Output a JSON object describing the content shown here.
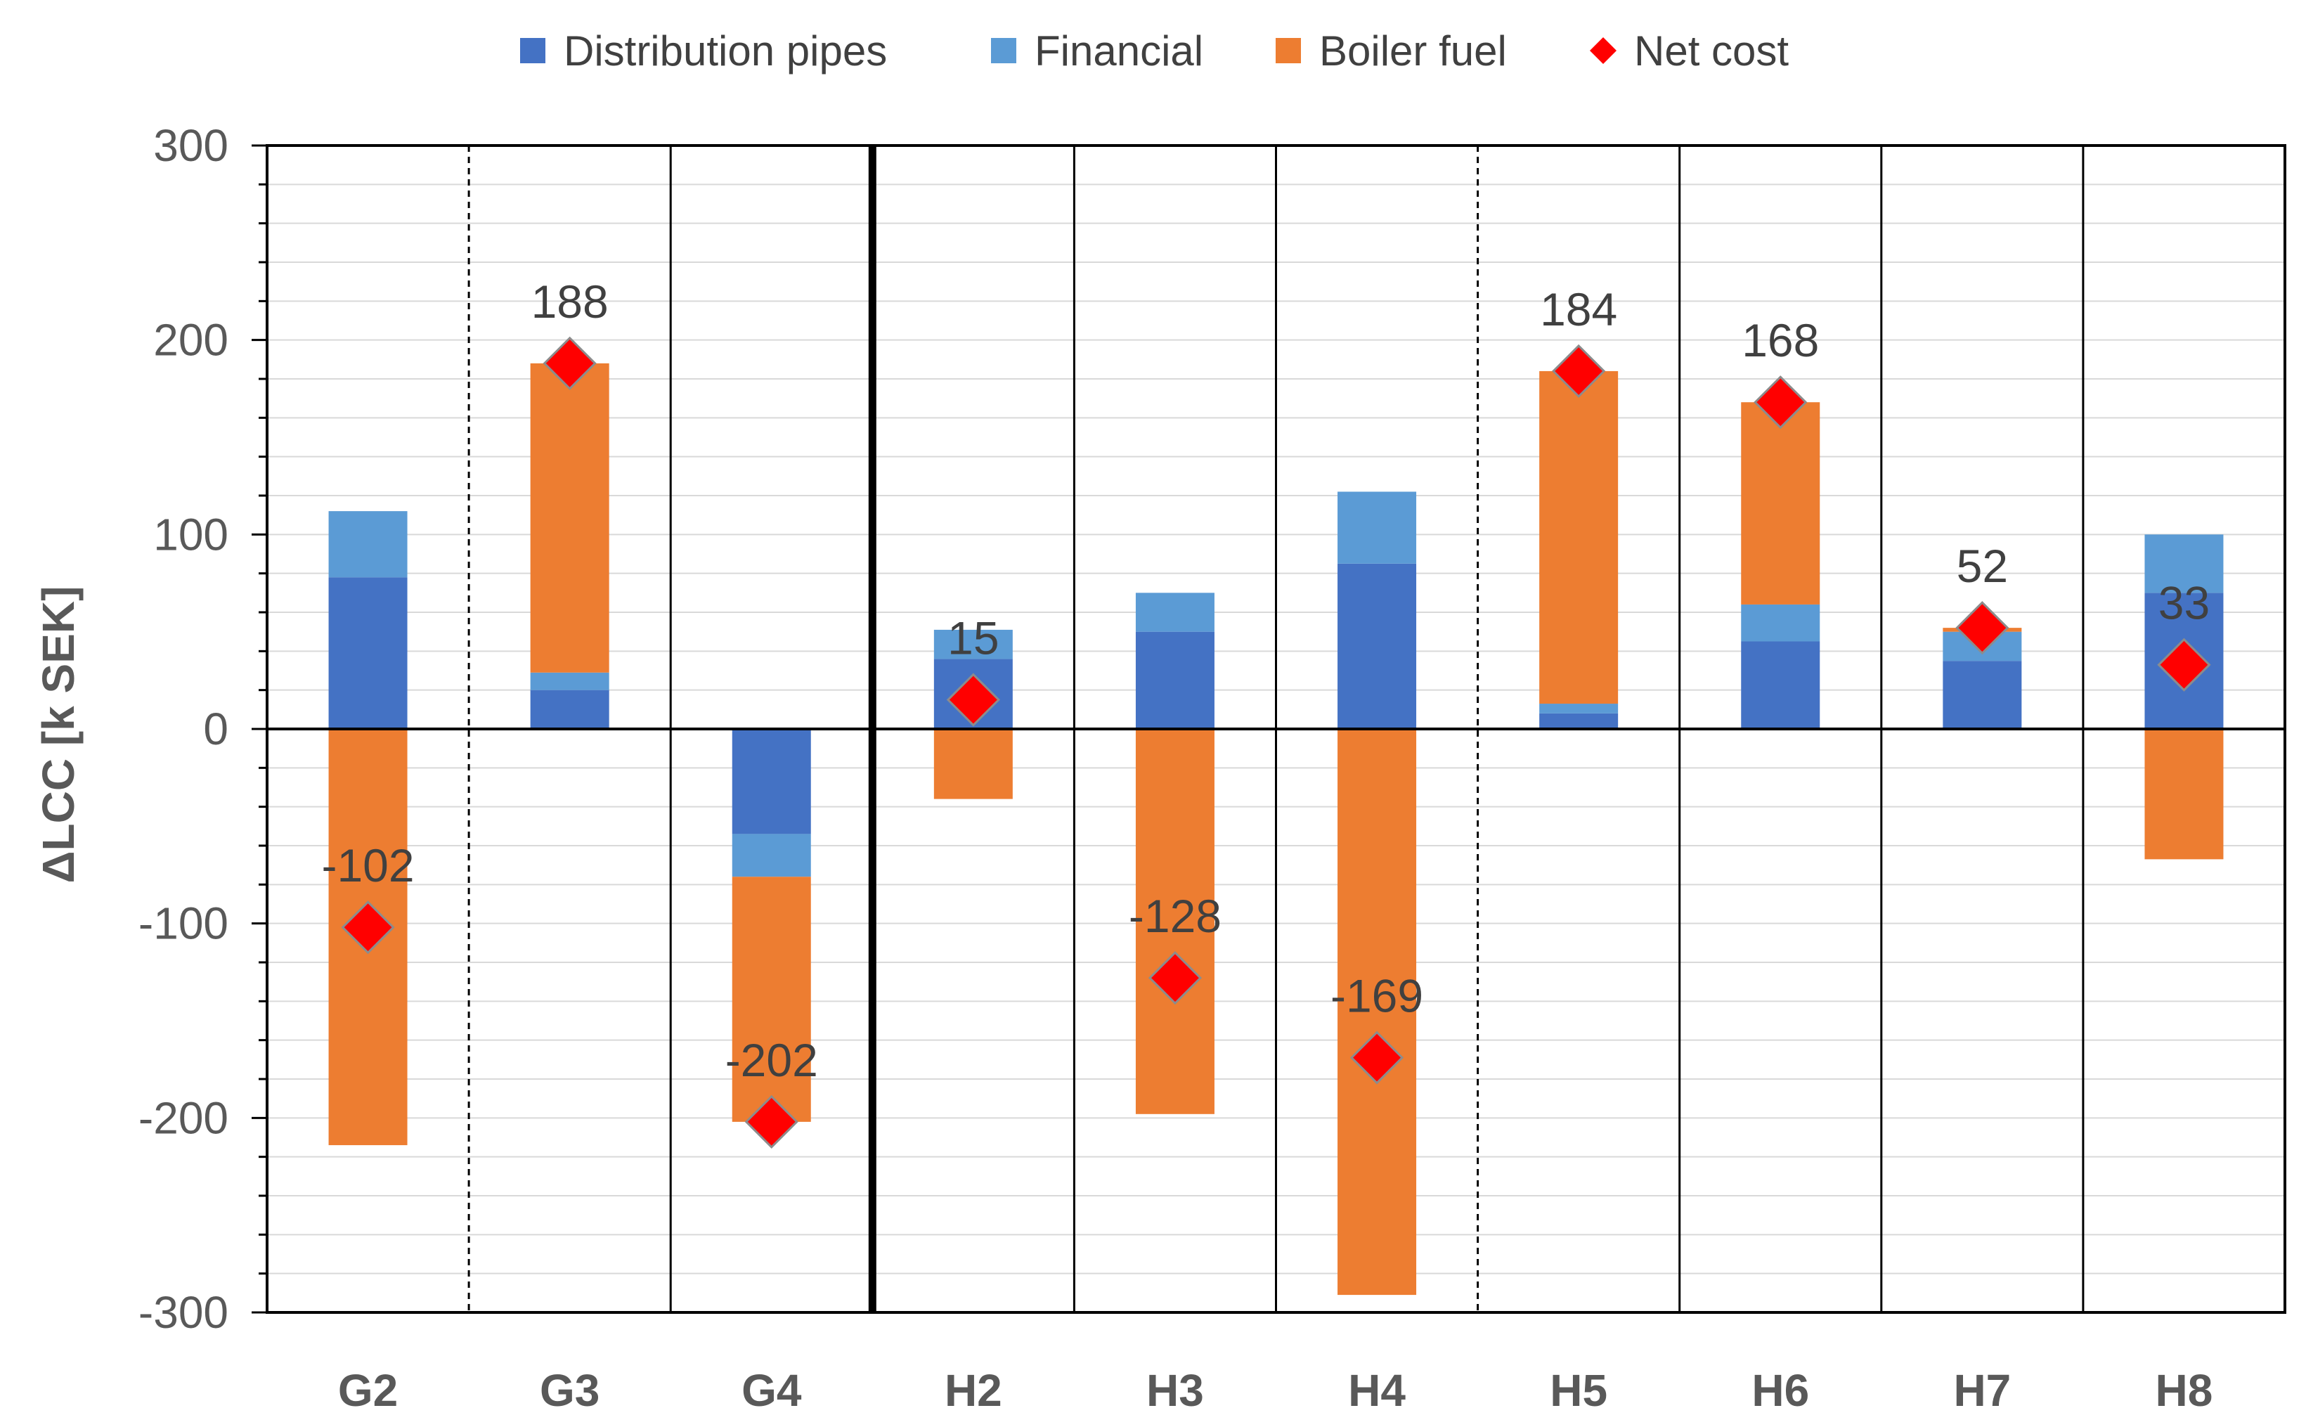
{
  "chart_data": {
    "type": "bar",
    "stacked": true,
    "title": "",
    "xlabel": "",
    "ylabel": "ΔLCC [k SEK]",
    "ylim": [
      -300,
      300
    ],
    "yticks": [
      300,
      200,
      100,
      0,
      -100,
      -200,
      -300
    ],
    "categories": [
      "G2",
      "G3",
      "G4",
      "H2",
      "H3",
      "H4",
      "H5",
      "H6",
      "H7",
      "H8"
    ],
    "series": [
      {
        "name": "Distribution pipes",
        "color": "#4472C4",
        "values": [
          78,
          20,
          -54,
          36,
          50,
          85,
          8,
          45,
          35,
          70
        ]
      },
      {
        "name": "Financial",
        "color": "#5B9BD5",
        "values": [
          34,
          9,
          -22,
          15,
          20,
          37,
          5,
          19,
          15,
          30
        ]
      },
      {
        "name": "Boiler fuel",
        "color": "#ED7D31",
        "values": [
          -214,
          159,
          -126,
          -36,
          -198,
          -291,
          171,
          104,
          2,
          -67
        ]
      }
    ],
    "net_cost": {
      "name": "Net cost",
      "color": "#FF0000",
      "values": [
        -102,
        188,
        -202,
        15,
        -128,
        -169,
        184,
        168,
        52,
        33
      ],
      "labels": [
        "-102",
        "188",
        "-202",
        "15",
        "-128",
        "-169",
        "184",
        "168",
        "52",
        "33"
      ]
    },
    "separators": [
      "none",
      "dashed",
      "solid",
      "thick",
      "solid",
      "solid",
      "dashed",
      "solid",
      "solid",
      "solid"
    ],
    "legend": [
      "Distribution pipes",
      "Financial",
      "Boiler fuel",
      "Net cost"
    ],
    "legend_position": "top-center",
    "grid": true
  }
}
